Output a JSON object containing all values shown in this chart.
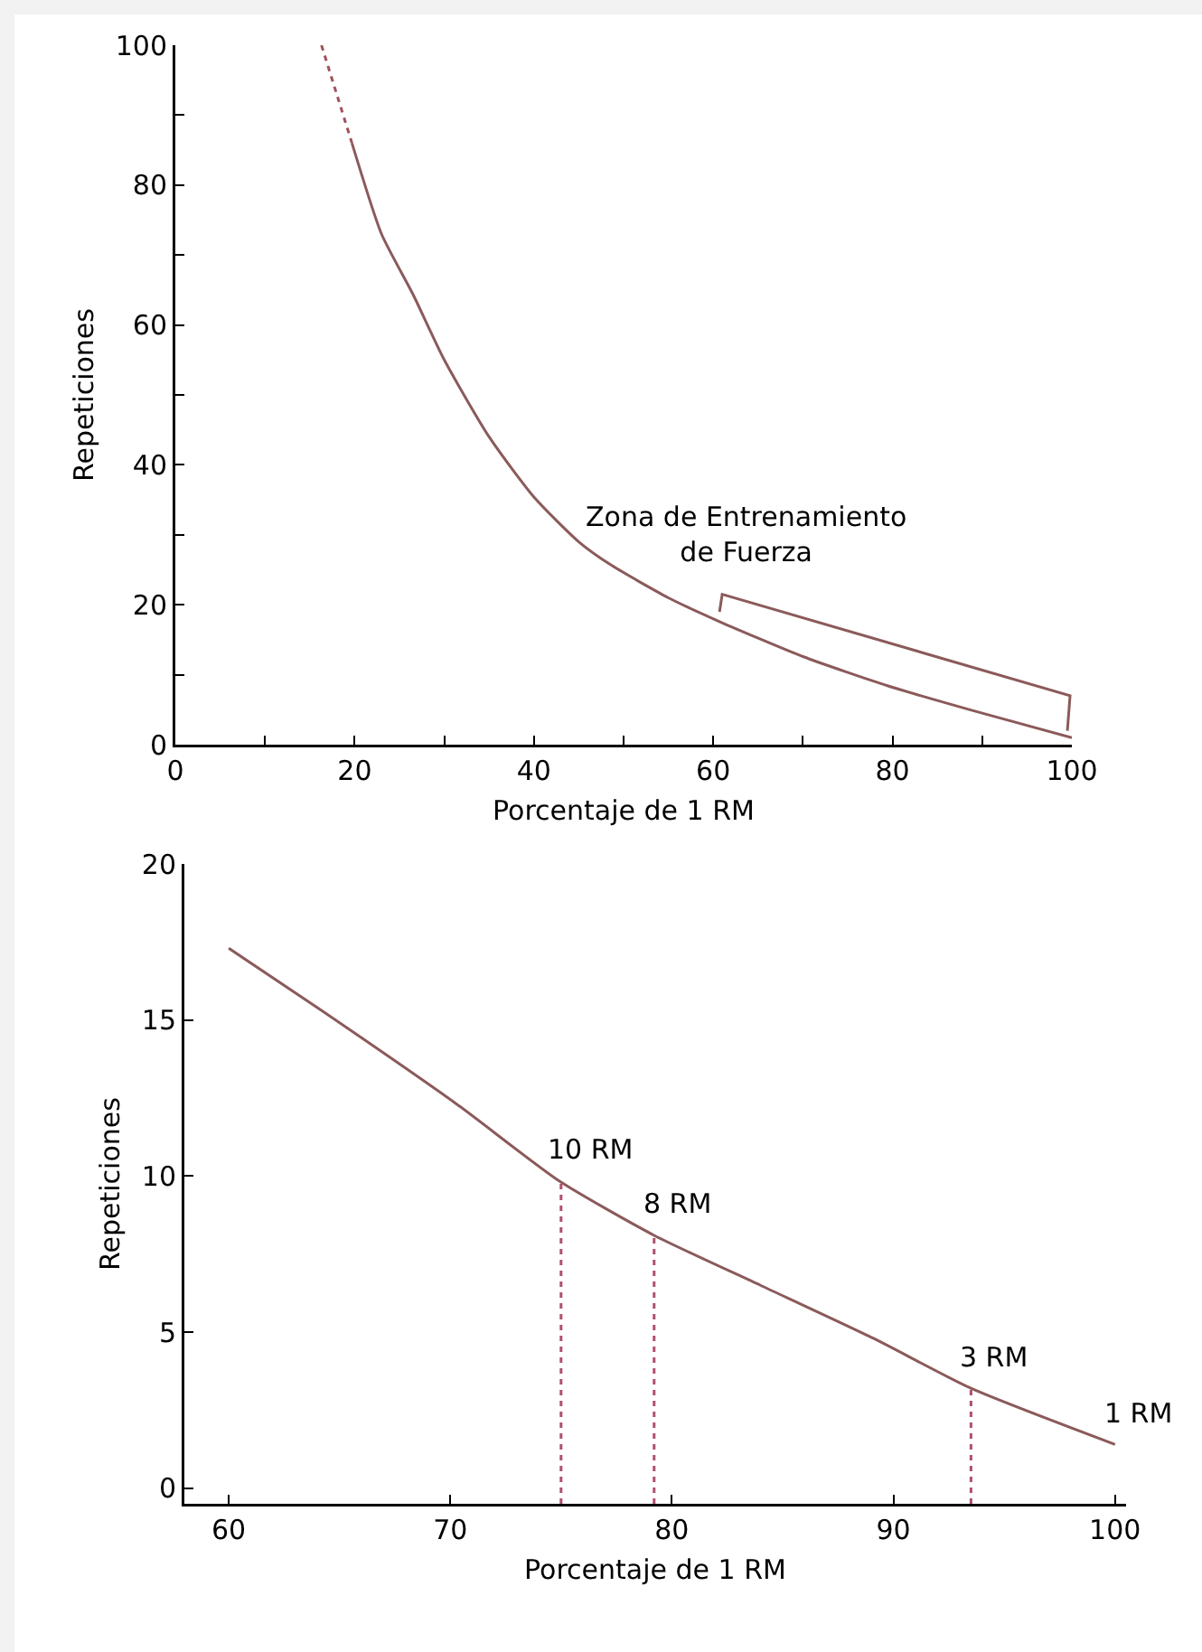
{
  "chart_data": [
    {
      "type": "line",
      "xlabel": "Porcentaje de 1 RM",
      "ylabel": "Repeticiones",
      "xlim": [
        0,
        100
      ],
      "ylim": [
        0,
        100
      ],
      "xticks": [
        0,
        {
          "value": 10,
          "label": null
        },
        20,
        {
          "value": 30,
          "label": null
        },
        40,
        {
          "value": 50,
          "label": null
        },
        60,
        {
          "value": 70,
          "label": null
        },
        80,
        {
          "value": 90,
          "label": null
        },
        100
      ],
      "yticks": [
        0,
        {
          "value": 10,
          "label": null
        },
        20,
        {
          "value": 30,
          "label": null
        },
        40,
        {
          "value": 50,
          "label": null
        },
        60,
        {
          "value": 70,
          "label": null
        },
        80,
        {
          "value": 90,
          "label": null
        },
        100
      ],
      "marker": "none",
      "series": [
        {
          "color": "#a0525a",
          "line_style": "dotted",
          "x": [
            16.3,
            18,
            19.7
          ],
          "values": [
            100,
            93,
            86
          ]
        },
        {
          "color": "#8b5a5a",
          "line_style": "solid",
          "x": [
            19.7,
            23,
            26.5,
            30,
            35,
            40,
            45,
            48.7,
            55,
            60.7,
            70,
            79.5,
            90,
            100
          ],
          "values": [
            86,
            73,
            64.4,
            55,
            44,
            35.4,
            29,
            25.6,
            21,
            17.6,
            12.6,
            8.4,
            4.5,
            1
          ]
        }
      ],
      "annotations": [
        "Zona de Entrenamiento\nde Fuerza"
      ]
    },
    {
      "type": "line",
      "xlabel": "Porcentaje de 1 RM",
      "ylabel": "Repeticiones",
      "xlim": [
        58,
        100.5
      ],
      "ylim": [
        -0.5,
        20
      ],
      "xticks": [
        60,
        70,
        80,
        90,
        100
      ],
      "yticks": [
        0,
        5,
        10,
        15,
        20
      ],
      "marker": "none",
      "series": [
        {
          "color": "#8b5a5a",
          "line_style": "solid",
          "x": [
            60,
            64.2,
            70.3,
            74.9,
            79.2,
            84,
            89.1,
            93.5,
            100
          ],
          "values": [
            17.3,
            15.3,
            12.3,
            9.85,
            8.1,
            6.5,
            4.8,
            3.2,
            1.4
          ]
        },
        {
          "color": "#b0506a",
          "line_style": "dotted",
          "x": [
            75,
            75
          ],
          "values": [
            -0.5,
            9.8
          ]
        },
        {
          "color": "#b0506a",
          "line_style": "dotted",
          "x": [
            79.2,
            79.2
          ],
          "values": [
            -0.5,
            8.1
          ]
        },
        {
          "color": "#b0506a",
          "line_style": "dotted",
          "x": [
            93.5,
            93.5
          ],
          "values": [
            -0.5,
            3.2
          ]
        }
      ],
      "annotations": [
        {
          "text": "10 RM",
          "x": 74.9,
          "y": 9.85
        },
        {
          "text": "8 RM",
          "x": 79.2,
          "y": 8.1
        },
        {
          "text": "3 RM",
          "x": 93.5,
          "y": 3.2
        },
        {
          "text": "1 RM",
          "x": 100,
          "y": 1.4
        }
      ]
    }
  ]
}
